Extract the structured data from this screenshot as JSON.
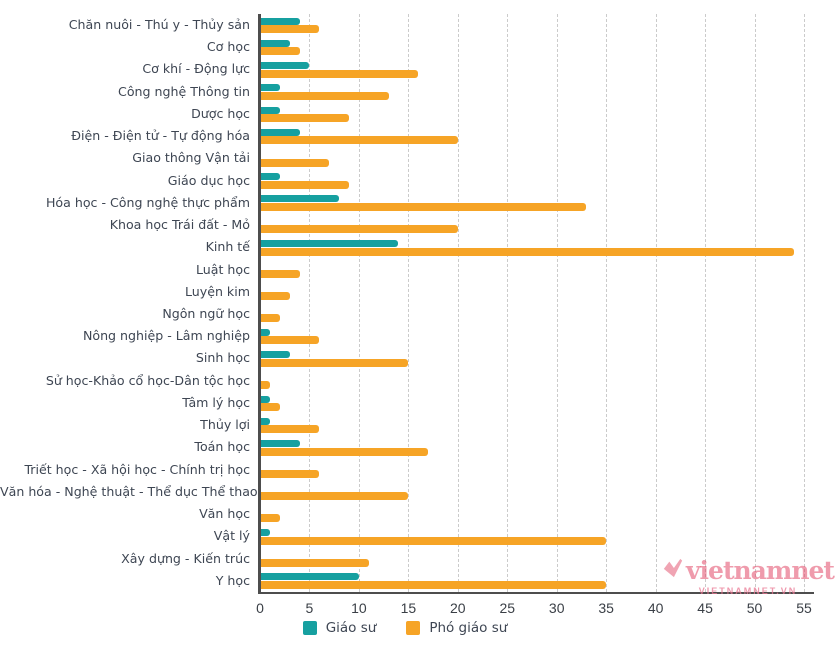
{
  "chart_data": {
    "type": "bar",
    "orientation": "horizontal",
    "title": "",
    "xlabel": "",
    "ylabel": "",
    "xlim": [
      0,
      55.6
    ],
    "x_ticks": [
      0,
      5,
      10,
      15,
      20,
      25,
      30,
      35,
      40,
      45,
      50,
      55
    ],
    "grid": "dashed-vertical",
    "legend_position": "bottom-center",
    "categories": [
      "Chăn nuôi - Thú y - Thủy sản",
      "Cơ học",
      "Cơ khí - Động lực",
      "Công nghệ Thông tin",
      "Dược học",
      "Điện - Điện tử - Tự động hóa",
      "Giao thông Vận tải",
      "Giáo dục học",
      "Hóa học - Công nghệ thực phẩm",
      "Khoa học Trái đất - Mỏ",
      "Kinh tế",
      "Luật học",
      "Luyện kim",
      "Ngôn ngữ học",
      "Nông nghiệp - Lâm nghiệp",
      "Sinh học",
      "Sử học-Khảo cổ học-Dân tộc học",
      "Tâm lý học",
      "Thủy lợi",
      "Toán học",
      "Triết học - Xã hội học - Chính trị học",
      "Văn hóa - Nghệ thuật - Thể dục Thể thao",
      "Văn học",
      "Vật lý",
      "Xây dựng - Kiến trúc",
      "Y học"
    ],
    "series": [
      {
        "name": "Giáo sư",
        "color": "#16a0a0",
        "values": [
          4,
          3,
          5,
          2,
          2,
          4,
          0,
          2,
          8,
          0,
          14,
          0,
          0,
          0,
          1,
          3,
          0,
          1,
          1,
          4,
          0,
          0,
          0,
          1,
          0,
          10
        ]
      },
      {
        "name": "Phó giáo sư",
        "color": "#f6a426",
        "values": [
          6,
          4,
          16,
          13,
          9,
          20,
          7,
          9,
          33,
          20,
          54,
          4,
          3,
          2,
          6,
          15,
          1,
          2,
          6,
          17,
          6,
          15,
          2,
          35,
          11,
          35
        ]
      }
    ]
  },
  "colors": {
    "axis": "#4d4d4d",
    "gridline": "#cbcbcb",
    "label_text": "#3e4653"
  },
  "watermark": {
    "logo_text": "vietnamnet",
    "sub_text": "VIETNAMNET.VN",
    "color": "#e24968"
  }
}
